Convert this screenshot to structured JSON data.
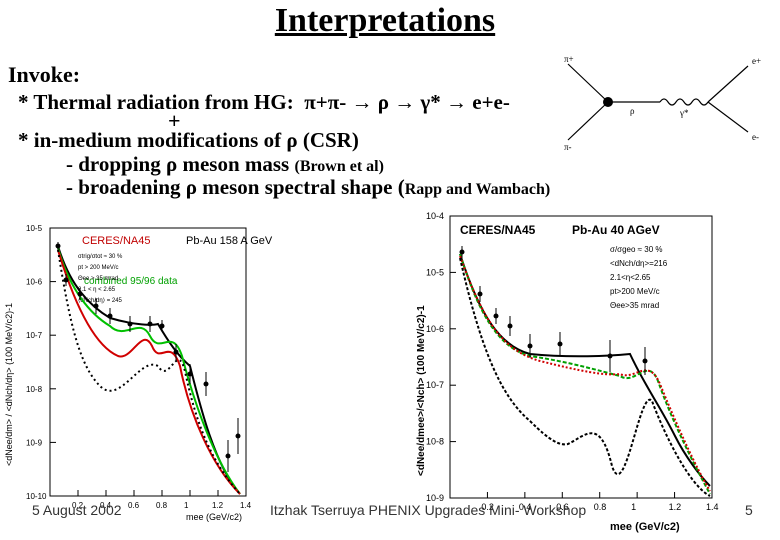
{
  "title": "Interpretations",
  "invoke": "Invoke:",
  "line1_prefix": "* Thermal radiation from HG:",
  "line1_formula": "π+π- → ρ → γ* → e+e-",
  "plus": "+",
  "line2": "* in-medium modifications of ρ (CSR)",
  "line3_main": "- dropping ρ meson mass",
  "line3_ref": "(Brown et al)",
  "line4_main": "- broadening ρ meson spectral shape (",
  "line4_ref": "Rapp and Wambach)",
  "feynman": {
    "pi_plus": "π+",
    "pi_minus": "π-",
    "rho": "ρ",
    "gamma": "γ*",
    "e_plus": "e+",
    "e_minus": "e-"
  },
  "footer": {
    "date": "5 August 2002",
    "author": "Itzhak Tserruya PHENIX Upgrades Mini- Workshop",
    "page": "5"
  },
  "chart_data": [
    {
      "type": "line",
      "label": "CERES/NA45",
      "system": "Pb-Au 158 A GeV",
      "annotation": "combined 95/96 data",
      "cuts": [
        "σtrig/σtot ≈ 30 %",
        "pt > 200 MeV/c",
        "Θee > 35 mrad",
        "2.1 < η < 2.65",
        "⟨dNch/dη⟩ = 245"
      ],
      "xlabel": "mee (GeV/c2)",
      "ylabel": "<dNee/dm> / <dNch/dη> (100 MeV/c2)-1",
      "xlim": [
        0,
        1.4
      ],
      "y_log_exponents": [
        -5,
        -10
      ],
      "x_ticks": [
        "0.2",
        "0.4",
        "0.6",
        "0.8",
        "1",
        "1.2",
        "1.4"
      ],
      "y_ticks": [
        "10-5",
        "10-6",
        "10-7",
        "10-8",
        "10-9",
        "10-10"
      ]
    },
    {
      "type": "line",
      "label": "CERES/NA45",
      "system": "Pb-Au 40 AGeV",
      "cuts": [
        "σ/σgeo ≈ 30 %",
        "<dNch/dη>=216",
        "2.1<η<2.65",
        "pt>200 MeV/c",
        "Θee>35 mrad"
      ],
      "xlabel": "mee (GeV/c2)",
      "ylabel": "<dNee/dmee>/<Nch> (100 MeV/c2)-1",
      "xlim": [
        0,
        1.4
      ],
      "y_log_exponents": [
        -4,
        -9
      ],
      "x_ticks": [
        "0.2",
        "0.4",
        "0.6",
        "0.8",
        "1",
        "1.2",
        "1.4"
      ],
      "y_ticks": [
        "10-4",
        "10-5",
        "10-6",
        "10-7",
        "10-8",
        "10-9"
      ]
    }
  ]
}
